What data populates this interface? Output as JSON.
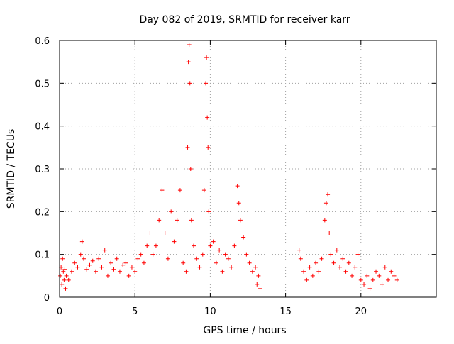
{
  "chart_data": {
    "type": "scatter",
    "title": "Day 082 of 2019, SRMTID for receiver karr",
    "xlabel": "GPS time / hours",
    "ylabel": "SRMTID / TECUs",
    "xlim": [
      0,
      25
    ],
    "ylim": [
      0,
      0.6
    ],
    "x_ticks": [
      0,
      5,
      10,
      15,
      20
    ],
    "y_ticks": [
      0,
      0.1,
      0.2,
      0.3,
      0.4,
      0.5,
      0.6
    ],
    "x_tick_labels": [
      "0",
      "5",
      "10",
      "15",
      "20"
    ],
    "y_tick_labels": [
      "0",
      "0.1",
      "0.2",
      "0.3",
      "0.4",
      "0.5",
      "0.6"
    ],
    "grid": true,
    "marker": "+",
    "marker_color": "#ff0000",
    "series": [
      {
        "name": "SRMTID",
        "points": [
          [
            0.05,
            0.05
          ],
          [
            0.1,
            0.07
          ],
          [
            0.15,
            0.03
          ],
          [
            0.2,
            0.09
          ],
          [
            0.25,
            0.06
          ],
          [
            0.3,
            0.04
          ],
          [
            0.35,
            0.065
          ],
          [
            0.4,
            0.02
          ],
          [
            0.45,
            0.05
          ],
          [
            0.6,
            0.04
          ],
          [
            0.8,
            0.06
          ],
          [
            1.0,
            0.08
          ],
          [
            1.2,
            0.07
          ],
          [
            1.4,
            0.1
          ],
          [
            1.5,
            0.13
          ],
          [
            1.6,
            0.09
          ],
          [
            1.8,
            0.065
          ],
          [
            2.0,
            0.075
          ],
          [
            2.2,
            0.085
          ],
          [
            2.4,
            0.06
          ],
          [
            2.6,
            0.09
          ],
          [
            2.8,
            0.07
          ],
          [
            3.0,
            0.11
          ],
          [
            3.2,
            0.05
          ],
          [
            3.4,
            0.08
          ],
          [
            3.6,
            0.065
          ],
          [
            3.8,
            0.09
          ],
          [
            4.0,
            0.06
          ],
          [
            4.2,
            0.075
          ],
          [
            4.4,
            0.08
          ],
          [
            4.6,
            0.05
          ],
          [
            4.8,
            0.07
          ],
          [
            5.0,
            0.06
          ],
          [
            5.2,
            0.09
          ],
          [
            5.4,
            0.1
          ],
          [
            5.6,
            0.08
          ],
          [
            5.8,
            0.12
          ],
          [
            6.0,
            0.15
          ],
          [
            6.2,
            0.1
          ],
          [
            6.4,
            0.12
          ],
          [
            6.6,
            0.18
          ],
          [
            6.8,
            0.25
          ],
          [
            7.0,
            0.15
          ],
          [
            7.2,
            0.09
          ],
          [
            7.4,
            0.2
          ],
          [
            7.6,
            0.13
          ],
          [
            7.8,
            0.18
          ],
          [
            8.0,
            0.25
          ],
          [
            8.2,
            0.08
          ],
          [
            8.4,
            0.06
          ],
          [
            8.5,
            0.35
          ],
          [
            8.55,
            0.55
          ],
          [
            8.6,
            0.59
          ],
          [
            8.65,
            0.5
          ],
          [
            8.7,
            0.3
          ],
          [
            8.75,
            0.18
          ],
          [
            8.9,
            0.12
          ],
          [
            9.1,
            0.09
          ],
          [
            9.3,
            0.07
          ],
          [
            9.5,
            0.1
          ],
          [
            9.6,
            0.25
          ],
          [
            9.7,
            0.5
          ],
          [
            9.75,
            0.56
          ],
          [
            9.8,
            0.42
          ],
          [
            9.85,
            0.35
          ],
          [
            9.9,
            0.2
          ],
          [
            10.0,
            0.12
          ],
          [
            10.2,
            0.13
          ],
          [
            10.4,
            0.08
          ],
          [
            10.6,
            0.11
          ],
          [
            10.8,
            0.06
          ],
          [
            11.0,
            0.1
          ],
          [
            11.2,
            0.09
          ],
          [
            11.4,
            0.07
          ],
          [
            11.6,
            0.12
          ],
          [
            11.8,
            0.26
          ],
          [
            11.9,
            0.22
          ],
          [
            12.0,
            0.18
          ],
          [
            12.2,
            0.14
          ],
          [
            12.4,
            0.1
          ],
          [
            12.6,
            0.08
          ],
          [
            12.8,
            0.06
          ],
          [
            13.0,
            0.07
          ],
          [
            13.1,
            0.03
          ],
          [
            13.2,
            0.05
          ],
          [
            13.3,
            0.02
          ],
          [
            15.9,
            0.11
          ],
          [
            16.0,
            0.09
          ],
          [
            16.2,
            0.06
          ],
          [
            16.4,
            0.04
          ],
          [
            16.6,
            0.07
          ],
          [
            16.8,
            0.05
          ],
          [
            17.0,
            0.08
          ],
          [
            17.2,
            0.06
          ],
          [
            17.4,
            0.09
          ],
          [
            17.6,
            0.18
          ],
          [
            17.7,
            0.22
          ],
          [
            17.8,
            0.24
          ],
          [
            17.9,
            0.15
          ],
          [
            18.0,
            0.1
          ],
          [
            18.2,
            0.08
          ],
          [
            18.4,
            0.11
          ],
          [
            18.6,
            0.07
          ],
          [
            18.8,
            0.09
          ],
          [
            19.0,
            0.06
          ],
          [
            19.2,
            0.08
          ],
          [
            19.4,
            0.05
          ],
          [
            19.6,
            0.07
          ],
          [
            19.8,
            0.1
          ],
          [
            20.0,
            0.04
          ],
          [
            20.2,
            0.03
          ],
          [
            20.4,
            0.05
          ],
          [
            20.6,
            0.02
          ],
          [
            20.8,
            0.04
          ],
          [
            21.0,
            0.06
          ],
          [
            21.2,
            0.05
          ],
          [
            21.4,
            0.03
          ],
          [
            21.6,
            0.07
          ],
          [
            21.8,
            0.04
          ],
          [
            22.0,
            0.06
          ],
          [
            22.2,
            0.05
          ],
          [
            22.4,
            0.04
          ]
        ]
      }
    ]
  }
}
